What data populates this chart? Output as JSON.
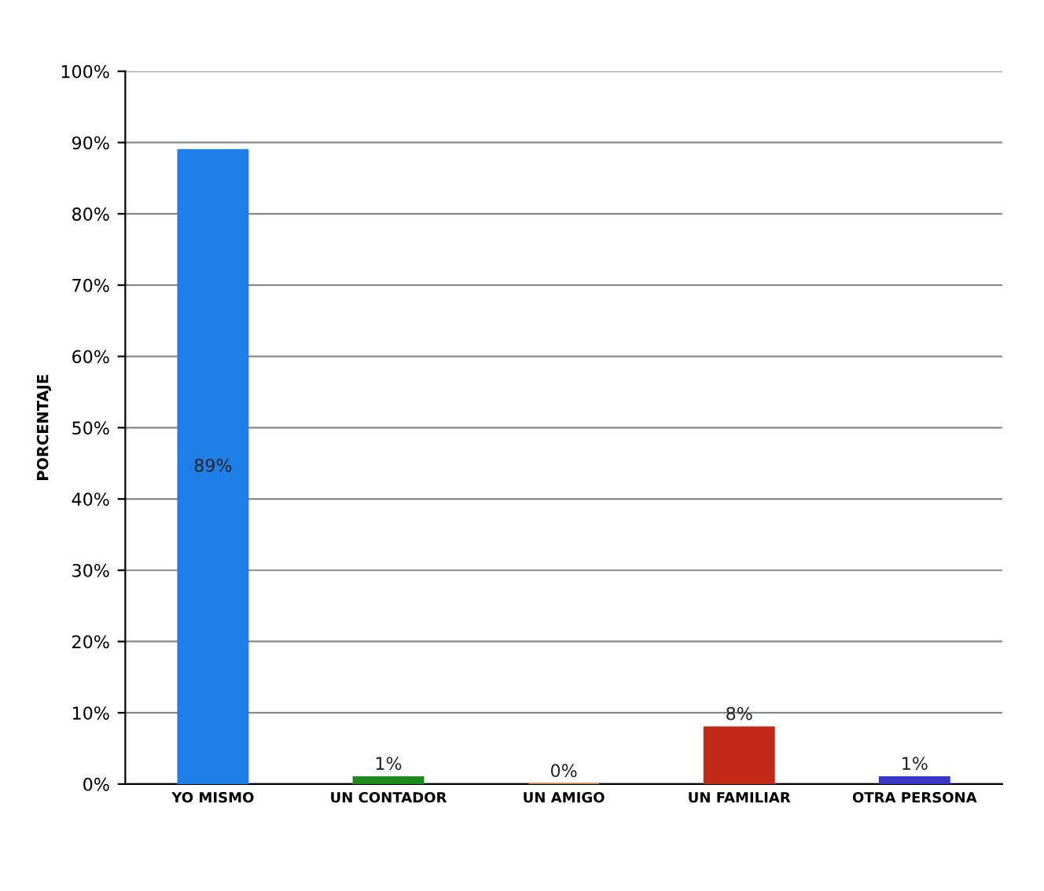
{
  "chart_data": {
    "type": "bar",
    "ylabel": "PORCENTAJE",
    "categories": [
      "YO MISMO",
      "UN CONTADOR",
      "UN AMIGO",
      "UN FAMILIAR",
      "OTRA PERSONA"
    ],
    "values": [
      89,
      1,
      0,
      8,
      1
    ],
    "colors": [
      "#1f7fe8",
      "#1e8a1e",
      "#f07a1e",
      "#c42a18",
      "#3838c8"
    ],
    "value_labels": [
      "89%",
      "1%",
      "0%",
      "8%",
      "1%"
    ],
    "ylim": [
      0,
      100
    ],
    "yticks": [
      {
        "value": 0,
        "label": "0%"
      },
      {
        "value": 10,
        "label": "10%"
      },
      {
        "value": 20,
        "label": "20%"
      },
      {
        "value": 30,
        "label": "30%"
      },
      {
        "value": 40,
        "label": "40%"
      },
      {
        "value": 50,
        "label": "50%"
      },
      {
        "value": 60,
        "label": "60%"
      },
      {
        "value": 70,
        "label": "70%"
      },
      {
        "value": 80,
        "label": "80%"
      },
      {
        "value": 90,
        "label": "90%"
      },
      {
        "value": 100,
        "label": "100%"
      }
    ],
    "grid": "y"
  }
}
